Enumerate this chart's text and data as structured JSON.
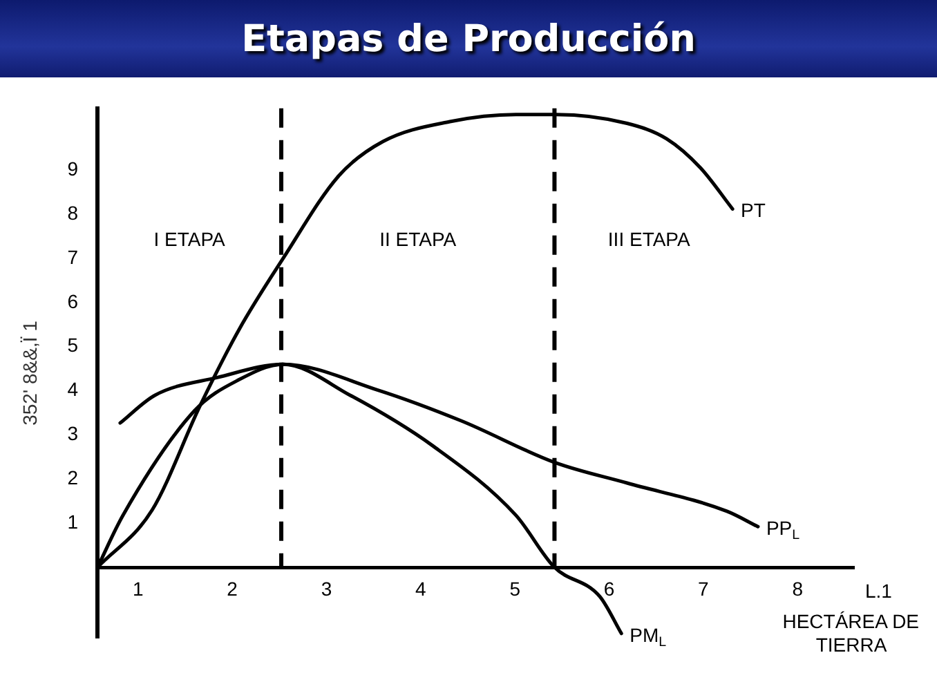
{
  "chart_data": {
    "type": "line",
    "title": "Etapas de Producción",
    "xlabel": "HECTÁREA DE TIERRA",
    "ylabel": "352' 8&&,Ï 1",
    "xlim": [
      0.57,
      8.6
    ],
    "ylim": [
      -1.6,
      10.4
    ],
    "xticks": [
      1,
      2,
      3,
      4,
      5,
      6,
      7,
      8
    ],
    "yticks": [
      1,
      2,
      3,
      4,
      5,
      6,
      7,
      8,
      9
    ],
    "grid": false,
    "legend": false,
    "marker": "none",
    "line_style": "solid",
    "series": [
      {
        "name": "PT",
        "color": "#000000",
        "x": [
          0.57,
          1.15,
          1.66,
          2.07,
          2.54,
          3.13,
          3.6,
          4.31,
          5.01,
          5.43,
          6.19,
          6.61,
          6.97,
          7.31
        ],
        "values": [
          0,
          1.3,
          3.67,
          5.38,
          7.0,
          8.87,
          9.65,
          10.1,
          10.26,
          10.26,
          10.06,
          9.71,
          9.05,
          8.12
        ]
      },
      {
        "name": "PP$_{L}$",
        "color": "#000000",
        "x": [
          0.81,
          1.18,
          1.84,
          2.54,
          3.54,
          4.43,
          5.43,
          6.19,
          7.25,
          7.58
        ],
        "values": [
          3.27,
          3.9,
          4.3,
          4.6,
          4.02,
          3.32,
          2.37,
          1.91,
          1.27,
          0.92
        ]
      },
      {
        "name": "PM$_{L}$",
        "color": "#000000",
        "x": [
          0.57,
          0.84,
          1.6,
          2.07,
          2.54,
          3.25,
          4.13,
          5.01,
          5.42,
          5.9,
          6.13
        ],
        "values": [
          0,
          1.18,
          3.55,
          4.25,
          4.6,
          3.9,
          2.75,
          1.18,
          0,
          -0.66,
          -1.5
        ]
      }
    ],
    "ref_lines": [
      {
        "axis": "x",
        "value": 2.52,
        "color": "#000000",
        "line_style": "dashed"
      },
      {
        "axis": "x",
        "value": 5.42,
        "color": "#000000",
        "line_style": "dashed"
      }
    ],
    "annotations": [
      "I ETAPA",
      "II ETAPA",
      "III ETAPA",
      "L.1"
    ]
  }
}
